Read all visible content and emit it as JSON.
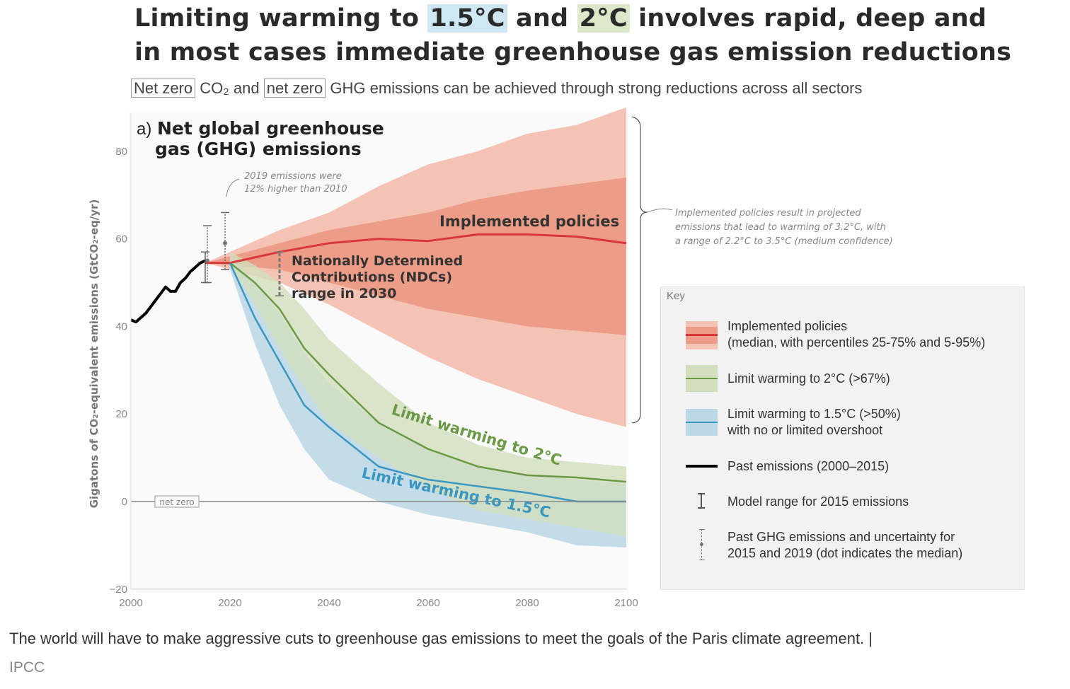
{
  "header": {
    "title_pre": "Limiting warming to ",
    "title_h1": "1.5°C",
    "title_mid": " and ",
    "title_h2": "2°C",
    "title_post": " involves rapid, deep and",
    "title_line2": "in most cases immediate greenhouse gas emission reductions",
    "subtitle_box1": "Net zero",
    "subtitle_mid1": " CO₂ and ",
    "subtitle_box2": "net zero",
    "subtitle_post": " GHG emissions can be achieved through strong reductions across all sectors"
  },
  "colors": {
    "highlight_1_5": "#cde7f3",
    "highlight_2": "#dbe8c9",
    "implemented": "#d9383a",
    "implemented_outer": "#f4c3b5",
    "implemented_inner": "#ec9c87",
    "two_deg": "#6a9a45",
    "two_deg_band": "#d2dfbd",
    "one_five": "#3a97c1",
    "one_five_band": "#bcd8e6",
    "past": "#000000"
  },
  "chart_data": {
    "type": "area",
    "panel_label": "a)",
    "title": "Net global greenhouse gas (GHG) emissions",
    "ylabel": "Gigatons of CO₂-equivalent emissions (GtCO₂-eq/yr)",
    "xlim": [
      2000,
      2100
    ],
    "ylim": [
      -20,
      90
    ],
    "xticks": [
      "2000",
      "2020",
      "2040",
      "2060",
      "2080",
      "2100"
    ],
    "yticks": [
      "-20",
      "0",
      "20",
      "40",
      "60",
      "80"
    ],
    "net_zero_label": "net zero",
    "annotation_2019": "2019 emissions were 12% higher than 2010",
    "annotation_ndc": "Nationally Determined Contributions (NDCs) range in 2030",
    "annotation_implemented": "Implemented policies",
    "annotation_2c": "Limit warming to 2°C",
    "annotation_15c": "Limit warming to 1.5°C",
    "annotation_brace": "Implemented policies result in projected emissions that lead to warming of 3.2°C, with a range of 2.2°C to 3.5°C (medium confidence)",
    "series": [
      {
        "name": "Past emissions (2000–2015)",
        "kind": "line",
        "x": [
          2000,
          2001,
          2002,
          2003,
          2004,
          2005,
          2006,
          2007,
          2008,
          2009,
          2010,
          2011,
          2012,
          2013,
          2014,
          2015
        ],
        "y": [
          41.5,
          41,
          42,
          43,
          44.5,
          46,
          47.5,
          49,
          48,
          48,
          50,
          51,
          52.5,
          53.5,
          54.5,
          55
        ]
      },
      {
        "name": "Implemented policies",
        "kind": "median_with_bands",
        "x": [
          2015,
          2020,
          2030,
          2040,
          2050,
          2060,
          2070,
          2080,
          2090,
          2100
        ],
        "median": [
          54.5,
          54.5,
          57,
          59,
          60,
          59.5,
          61,
          61,
          60.5,
          59
        ],
        "p25": [
          54.5,
          54,
          53,
          50,
          47,
          44,
          42,
          40,
          39,
          38
        ],
        "p75": [
          54.5,
          56,
          59,
          62,
          64,
          66,
          69,
          71,
          72.5,
          74
        ],
        "p5": [
          54.5,
          53,
          50,
          45,
          39,
          33,
          28,
          24,
          20,
          17
        ],
        "p95": [
          54.5,
          57,
          62,
          66,
          72,
          77,
          80,
          84,
          86,
          90
        ]
      },
      {
        "name": "Limit warming to 2°C (>67%)",
        "kind": "median_with_band",
        "x": [
          2020,
          2025,
          2030,
          2035,
          2040,
          2050,
          2060,
          2070,
          2080,
          2090,
          2100
        ],
        "median": [
          54.5,
          50,
          44,
          35,
          29,
          18,
          12,
          8,
          6,
          5.5,
          4.5
        ],
        "low": [
          54,
          45,
          35,
          26,
          18,
          10,
          3,
          -2,
          -4,
          -6,
          -8
        ],
        "high": [
          57,
          54,
          50,
          44,
          37,
          27,
          18,
          13,
          10,
          9,
          8
        ]
      },
      {
        "name": "Limit warming to 1.5°C (>50%) with no or limited overshoot",
        "kind": "median_with_band",
        "x": [
          2020,
          2025,
          2030,
          2035,
          2040,
          2050,
          2060,
          2070,
          2080,
          2090,
          2100
        ],
        "median": [
          54.5,
          42,
          32,
          22,
          17,
          8,
          5,
          3.5,
          2,
          0,
          0
        ],
        "low": [
          53,
          36,
          22,
          12,
          5,
          0,
          -3,
          -5,
          -7,
          -10,
          -10.5
        ],
        "high": [
          56,
          50,
          43,
          34,
          27,
          18,
          12,
          8,
          6,
          5,
          4
        ]
      }
    ],
    "error_bars": [
      {
        "name": "Model range for 2015 emissions",
        "x": 2015,
        "low": 50,
        "high": 57
      },
      {
        "name": "Past GHG emissions 2015",
        "x": 2015,
        "low": 50,
        "high": 63,
        "median": 55
      },
      {
        "name": "Past GHG emissions 2019",
        "x": 2019,
        "low": 53,
        "high": 66,
        "median": 59
      },
      {
        "name": "NDC range 2030",
        "x": 2030,
        "low": 47,
        "high": 57
      }
    ],
    "legend": {
      "title": "Key",
      "placement": "right",
      "items": [
        "Implemented policies",
        "(median, with percentiles 25-75% and 5-95%)",
        "Limit warming to 2°C (>67%)",
        "Limit warming to 1.5°C (>50%)",
        "with no or limited overshoot",
        "Past emissions (2000–2015)",
        "Model range for 2015 emissions",
        "Past GHG emissions and uncertainty for",
        "2015 and 2019 (dot indicates the median)"
      ]
    }
  },
  "caption": {
    "text": "The world will have to make aggressive cuts to greenhouse gas emissions to meet the goals of the Paris climate agreement.  |",
    "credit": "IPCC"
  }
}
